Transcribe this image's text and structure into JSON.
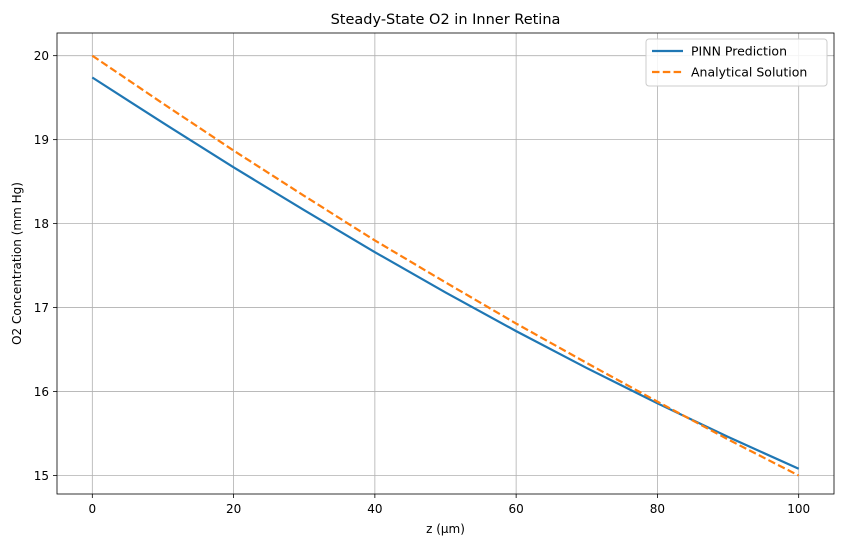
{
  "chart_data": {
    "type": "line",
    "title": "Steady-State O2 in Inner Retina",
    "xlabel": "z (μm)",
    "ylabel": "O2 Concentration (mm Hg)",
    "xlim": [
      -5,
      105
    ],
    "ylim": [
      14.78,
      20.27
    ],
    "xticks": [
      0,
      20,
      40,
      60,
      80,
      100
    ],
    "yticks": [
      15,
      16,
      17,
      18,
      19,
      20
    ],
    "grid": true,
    "legend_position": "top-right",
    "series": [
      {
        "name": "PINN Prediction",
        "color": "#1f77b4",
        "style": "solid",
        "x": [
          0,
          10,
          20,
          30,
          40,
          50,
          60,
          70,
          80,
          90,
          100
        ],
        "y": [
          19.74,
          19.2,
          18.67,
          18.16,
          17.66,
          17.18,
          16.72,
          16.28,
          15.86,
          15.46,
          15.08
        ]
      },
      {
        "name": "Analytical Solution",
        "color": "#ff7f0e",
        "style": "dashed",
        "x": [
          0,
          10,
          20,
          30,
          40,
          50,
          60,
          70,
          80,
          90,
          100
        ],
        "y": [
          20.0,
          19.43,
          18.87,
          18.33,
          17.8,
          17.3,
          16.81,
          16.34,
          15.88,
          15.43,
          15.0
        ]
      }
    ]
  }
}
